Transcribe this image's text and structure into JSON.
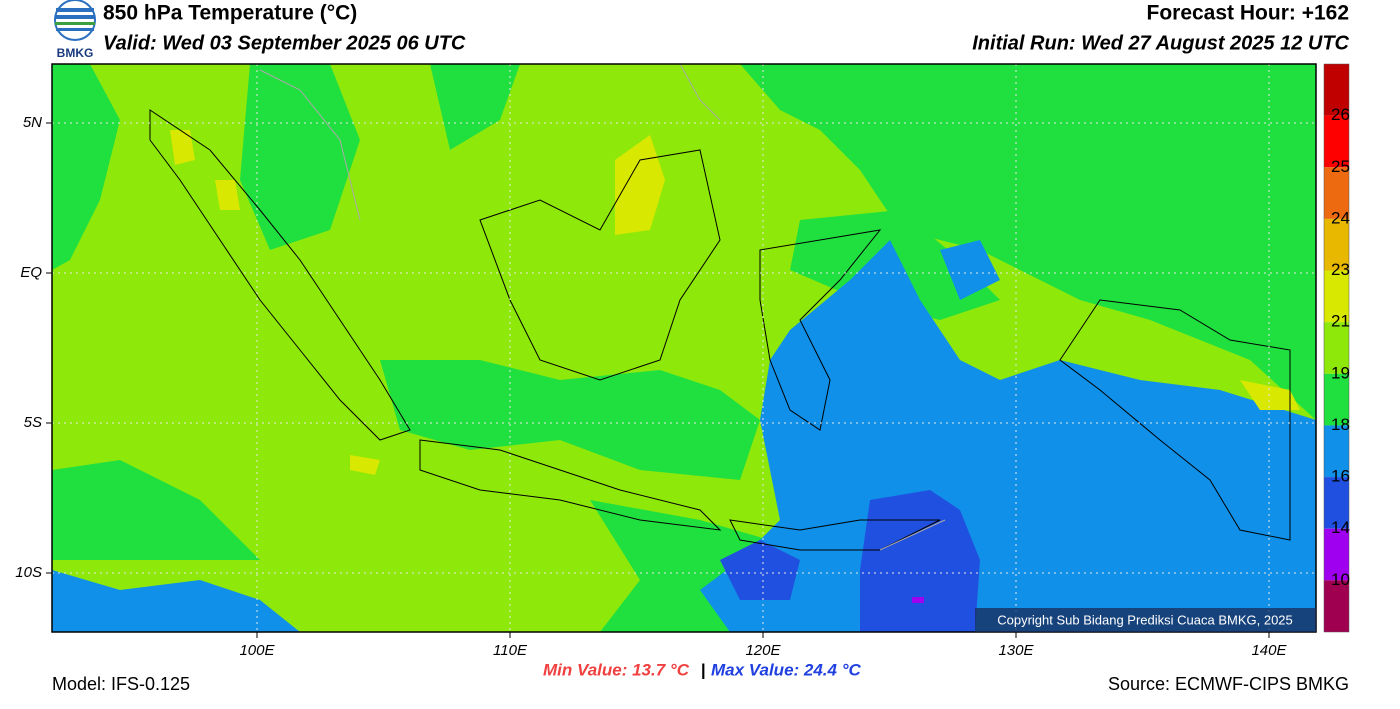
{
  "header": {
    "logo": "BMKG",
    "title": "850 hPa Temperature (°C)",
    "valid": "Valid: Wed 03 September 2025 06 UTC",
    "forecast_hour": "Forecast Hour: +162",
    "initial_run": "Initial Run: Wed 27 August 2025 12 UTC"
  },
  "map": {
    "lat_ticks": [
      {
        "value": 5,
        "label": "5N"
      },
      {
        "value": 0,
        "label": "EQ"
      },
      {
        "value": -5,
        "label": "5S"
      },
      {
        "value": -10,
        "label": "10S"
      }
    ],
    "lon_ticks": [
      {
        "value": 100,
        "label": "100E"
      },
      {
        "value": 110,
        "label": "110E"
      },
      {
        "value": 120,
        "label": "120E"
      },
      {
        "value": 130,
        "label": "130E"
      },
      {
        "value": 140,
        "label": "140E"
      }
    ],
    "copyright": "Copyright Sub Bidang Prediksi Cuaca BMKG, 2025"
  },
  "legend": {
    "labels": [
      26,
      25,
      24,
      23,
      21,
      19,
      18,
      16,
      14,
      10
    ],
    "colors": [
      "#c00000",
      "#ff0000",
      "#ee6a10",
      "#e8b800",
      "#d8e800",
      "#8ee80a",
      "#20e040",
      "#1090e8",
      "#2050e0",
      "#a000f0",
      "#a00050"
    ]
  },
  "footer": {
    "model": "Model: IFS-0.125",
    "min_value": "Min Value: 13.7 °C",
    "separator": "|",
    "max_value": "Max Value: 24.4 °C",
    "source": "Source: ECMWF-CIPS BMKG"
  }
}
